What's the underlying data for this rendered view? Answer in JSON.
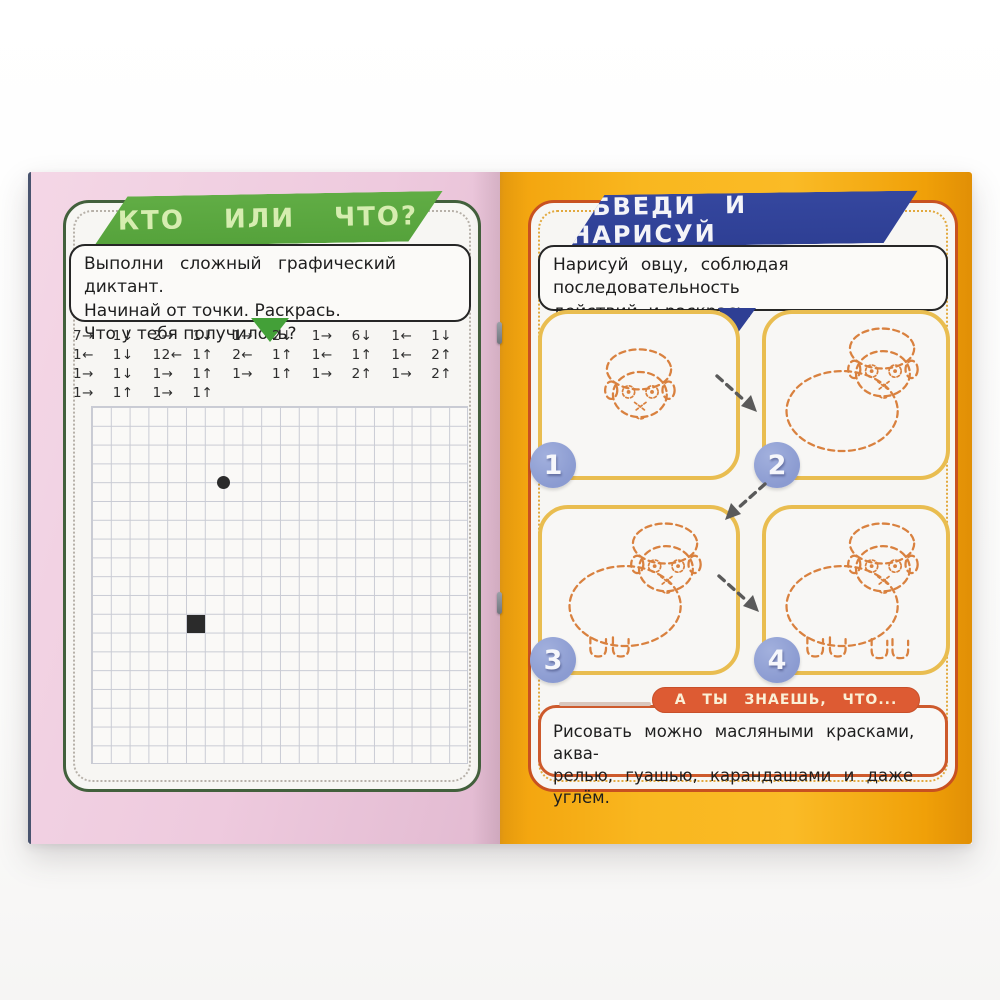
{
  "left_page": {
    "banner_title": "КТО ИЛИ ЧТО?",
    "instruction_lines": [
      "Выполни сложный графический диктант.",
      "Начинай от точки. Раскрась.",
      "Что у тебя получилось?"
    ],
    "dictation_rows": [
      [
        "7→",
        "1↓",
        "2→",
        "1↓",
        "1→",
        "2↓",
        "1→",
        "6↓",
        "1←",
        "1↓"
      ],
      [
        "1←",
        "1↓",
        "12←",
        "1↑",
        "2←",
        "1↑",
        "1←",
        "1↑",
        "1←",
        "2↑"
      ],
      [
        "1→",
        "1↓",
        "1→",
        "1↑",
        "1→",
        "1↑",
        "1→",
        "2↑",
        "1→",
        "2↑"
      ],
      [
        "1→",
        "1↑",
        "1→",
        "1↑"
      ]
    ],
    "grid": {
      "cols": 20,
      "rows": 19,
      "dot_col": 7,
      "dot_row": 4,
      "filled_col": 5,
      "filled_row": 11
    }
  },
  "right_page": {
    "banner_title": "ОБВЕДИ И НАРИСУЙ",
    "instruction_lines": [
      "Нарисуй овцу, соблюдая последовательность",
      "действий, и раскрась."
    ],
    "steps": [
      {
        "number": "1",
        "shows": "sheep-head"
      },
      {
        "number": "2",
        "shows": "sheep-head-body"
      },
      {
        "number": "3",
        "shows": "sheep-head-body-front-legs"
      },
      {
        "number": "4",
        "shows": "sheep-complete"
      }
    ],
    "footer": {
      "badge": "А ТЫ ЗНАЕШЬ, ЧТО...",
      "lines": [
        "Рисовать можно масляными красками, аква-",
        "релью, гуашью, карандашами и даже углём."
      ]
    }
  },
  "colors": {
    "page_pink": "#eecade",
    "page_orange": "#f7ab12",
    "banner_green": "#55a23b",
    "banner_green_text": "#d6edb0",
    "panel_border_green": "#42603c",
    "banner_blue": "#2e3f94",
    "panel_border_red": "#c85120",
    "step_border_gold": "#e9bd50",
    "badge_blue": "#8b9bd1",
    "sheep_outline": "#d9813f",
    "footer_red": "#dd5b33",
    "footer_text": "#faf0d7",
    "grid_line": "#c9cbd4",
    "ink": "#2b2b2b"
  }
}
